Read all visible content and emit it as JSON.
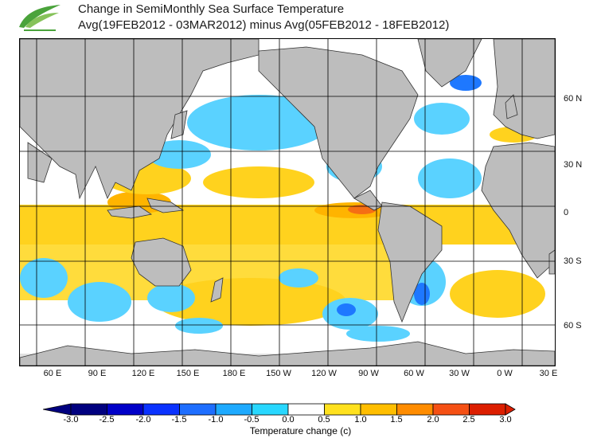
{
  "title_line1": "Change in SemiMonthly Sea Surface Temperature",
  "title_line2": "Avg(19FEB2012 - 03MAR2012) minus Avg(05FEB2012 - 18FEB2012)",
  "lon_labels": [
    "60 E",
    "90 E",
    "120 E",
    "150 E",
    "180 E",
    "150 W",
    "120 W",
    "90 W",
    "60 W",
    "30 W",
    "0 W",
    "30 E"
  ],
  "lat_labels": [
    "60 N",
    "30 N",
    "0",
    "30 S",
    "60 S"
  ],
  "colorbar": {
    "ticks": [
      "-3.0",
      "-2.5",
      "-2.0",
      "-1.5",
      "-1.0",
      "-0.5",
      "0.0",
      "0.5",
      "1.0",
      "1.5",
      "2.0",
      "2.5",
      "3.0"
    ],
    "colors": [
      "#00007f",
      "#0000c8",
      "#0a32ff",
      "#1e6eff",
      "#1eaaff",
      "#28d7ff",
      "#ffffff",
      "#ffe11e",
      "#ffbe00",
      "#ff8c00",
      "#f55014",
      "#dc1e00"
    ],
    "title": "Temperature change  (c)"
  },
  "map_colors": {
    "land": "#bdbdbd",
    "warm": "#ffd21e",
    "warm_mid": "#ffb400",
    "hot": "#f56e14",
    "cool": "#5ad2ff",
    "cold": "#1e78ff",
    "ice": "#e1e1e1"
  }
}
